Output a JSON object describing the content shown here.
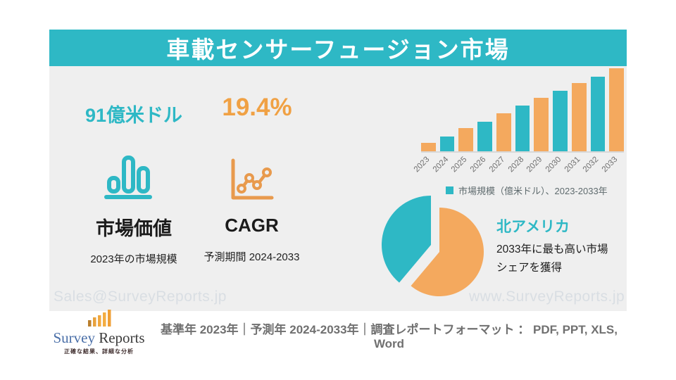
{
  "header": {
    "title": "車載センサーフュージョン市場"
  },
  "stats": {
    "market_value_number": "91億米ドル",
    "cagr_number": "19.4%",
    "market_value_label": "市場価値",
    "market_value_sub": "2023年の市場規模",
    "cagr_label": "CAGR",
    "cagr_sub": "予測期間 2024-2033"
  },
  "chart_data": [
    {
      "type": "bar",
      "categories": [
        "2023",
        "2024",
        "2025",
        "2026",
        "2027",
        "2028",
        "2029",
        "2030",
        "2031",
        "2032",
        "2033"
      ],
      "values_relative_pct": [
        10,
        18,
        28,
        36,
        46,
        55,
        64,
        73,
        82,
        90,
        100
      ],
      "series_name": "市場規模（億米ドル）、2023-2033年",
      "known_value_2023": "91億米ドル",
      "cagr": "19.4%",
      "bar_colors": [
        "#F4A95E",
        "#2EB8C5"
      ],
      "x_tick_rotation_deg": -45,
      "y_axis_visible": false,
      "grid": false
    },
    {
      "type": "pie",
      "slices": [
        {
          "color_name": "teal",
          "color": "#2EB8C5",
          "value_pct": 39,
          "exploded": true
        },
        {
          "color_name": "orange",
          "color": "#F4A95E",
          "value_pct": 61,
          "exploded": false
        }
      ],
      "labels_shown_on_chart": false,
      "associated_callout": "北アメリカ — 2033年に最も高い市場シェアを獲得"
    }
  ],
  "region": {
    "name": "北アメリカ",
    "description": "2033年に最も高い市場シェアを獲得"
  },
  "watermarks": {
    "left": "Sales@SurveyReports.jp",
    "right": "www.SurveyReports.jp"
  },
  "footer": {
    "logo_word1": "Survey",
    "logo_word2": " Reports",
    "logo_tagline": "正確な結果、詳細な分析",
    "text": "基準年 2023年｜予測年 2024-2033年｜調査レポートフォーマット ： PDF, PPT, XLS, Word"
  },
  "colors": {
    "teal": "#2EB8C5",
    "orange": "#F4A95E",
    "orange_text": "#F0A144",
    "content_bg": "#EFEFEF"
  }
}
